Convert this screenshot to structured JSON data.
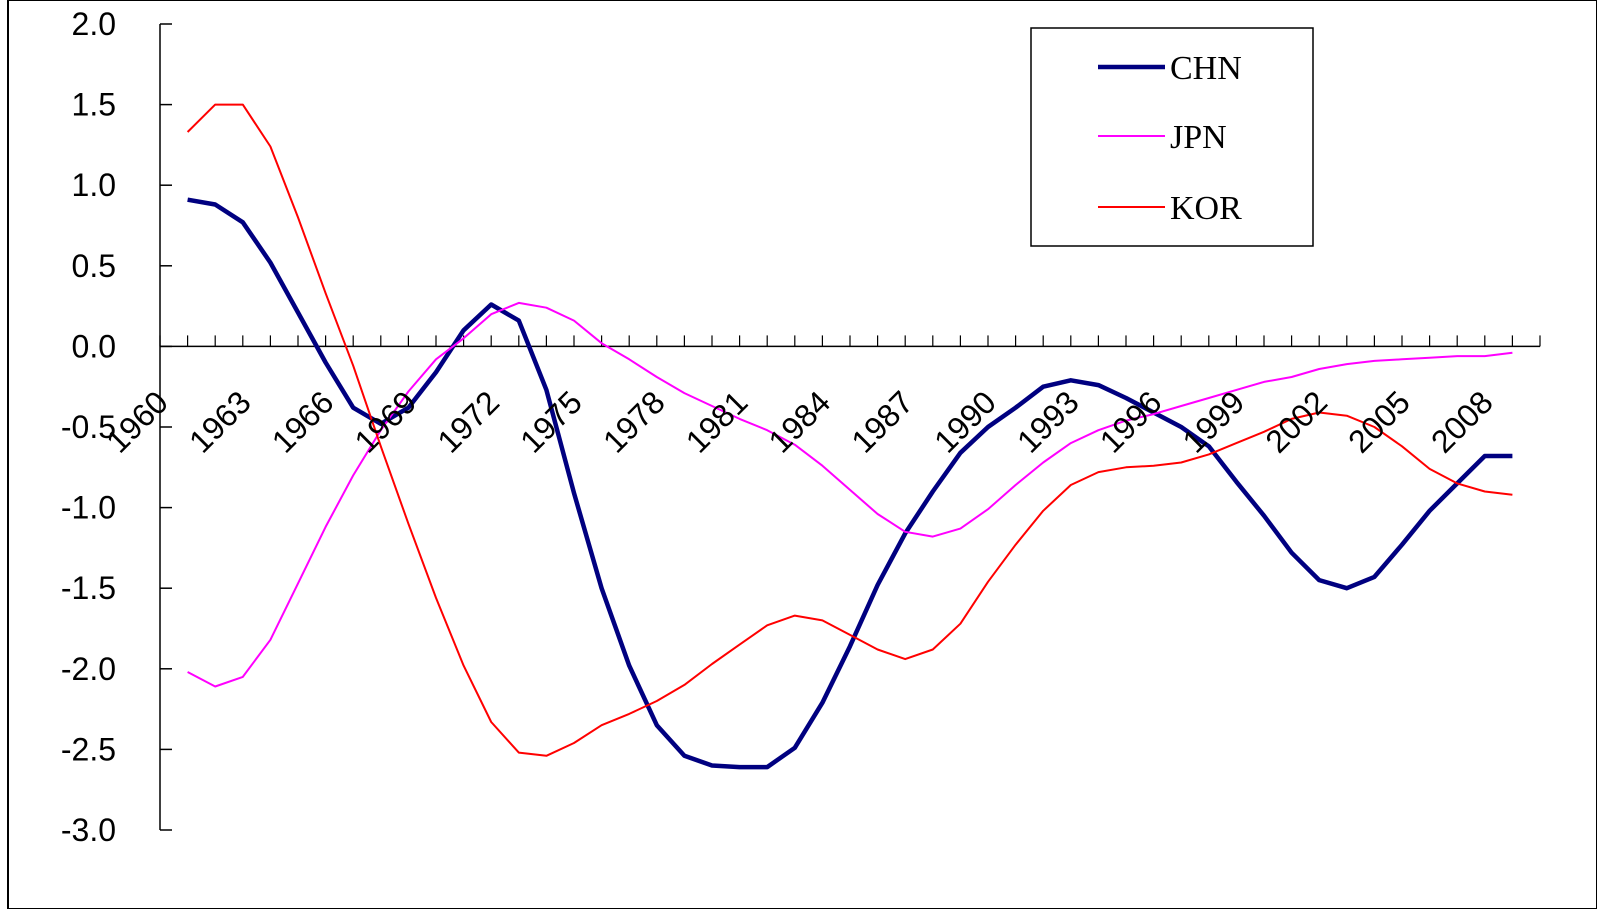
{
  "chart_data": {
    "type": "line",
    "title": "",
    "xlabel": "",
    "ylabel": "",
    "ylim": [
      -3.0,
      2.0
    ],
    "yticks": [
      "2.0",
      "1.5",
      "1.0",
      "0.5",
      "0.0",
      "-0.5",
      "-1.0",
      "-1.5",
      "-2.0",
      "-2.5",
      "-3.0"
    ],
    "xlim": [
      1960,
      2010
    ],
    "xticks": [
      "1960",
      "1963",
      "1966",
      "1969",
      "1972",
      "1975",
      "1978",
      "1981",
      "1984",
      "1987",
      "1990",
      "1993",
      "1996",
      "1999",
      "2002",
      "2005",
      "2008"
    ],
    "grid": false,
    "legend_position": "top-right",
    "series": [
      {
        "name": "CHN",
        "color": "#000080",
        "x": [
          1961,
          1962,
          1963,
          1964,
          1965,
          1966,
          1967,
          1968,
          1969,
          1970,
          1971,
          1972,
          1973,
          1974,
          1975,
          1976,
          1977,
          1978,
          1979,
          1980,
          1981,
          1982,
          1983,
          1984,
          1985,
          1986,
          1987,
          1988,
          1989,
          1990,
          1991,
          1992,
          1993,
          1994,
          1995,
          1996,
          1997,
          1998,
          1999,
          2000,
          2001,
          2002,
          2003,
          2004,
          2005,
          2006,
          2007,
          2008,
          2009
        ],
        "values": [
          0.91,
          0.88,
          0.77,
          0.52,
          0.21,
          -0.1,
          -0.38,
          -0.48,
          -0.38,
          -0.16,
          0.1,
          0.26,
          0.16,
          -0.27,
          -0.91,
          -1.5,
          -1.98,
          -2.35,
          -2.54,
          -2.6,
          -2.61,
          -2.61,
          -2.49,
          -2.21,
          -1.86,
          -1.48,
          -1.16,
          -0.9,
          -0.66,
          -0.5,
          -0.38,
          -0.25,
          -0.21,
          -0.24,
          -0.32,
          -0.41,
          -0.5,
          -0.62,
          -0.84,
          -1.05,
          -1.28,
          -1.45,
          -1.5,
          -1.43,
          -1.23,
          -1.02,
          -0.85,
          -0.68,
          -0.68
        ]
      },
      {
        "name": "JPN",
        "color": "#ff00ff",
        "x": [
          1961,
          1962,
          1963,
          1964,
          1965,
          1966,
          1967,
          1968,
          1969,
          1970,
          1971,
          1972,
          1973,
          1974,
          1975,
          1976,
          1977,
          1978,
          1979,
          1980,
          1981,
          1982,
          1983,
          1984,
          1985,
          1986,
          1987,
          1988,
          1989,
          1990,
          1991,
          1992,
          1993,
          1994,
          1995,
          1996,
          1997,
          1998,
          1999,
          2000,
          2001,
          2002,
          2003,
          2004,
          2005,
          2006,
          2007,
          2008,
          2009
        ],
        "values": [
          -2.02,
          -2.11,
          -2.05,
          -1.82,
          -1.47,
          -1.12,
          -0.8,
          -0.52,
          -0.28,
          -0.08,
          0.05,
          0.2,
          0.27,
          0.24,
          0.16,
          0.02,
          -0.08,
          -0.19,
          -0.29,
          -0.37,
          -0.45,
          -0.52,
          -0.61,
          -0.74,
          -0.89,
          -1.04,
          -1.15,
          -1.18,
          -1.13,
          -1.01,
          -0.86,
          -0.72,
          -0.6,
          -0.52,
          -0.46,
          -0.42,
          -0.37,
          -0.32,
          -0.27,
          -0.22,
          -0.19,
          -0.14,
          -0.11,
          -0.09,
          -0.08,
          -0.07,
          -0.06,
          -0.06,
          -0.04
        ]
      },
      {
        "name": "KOR",
        "color": "#ff0000",
        "x": [
          1961,
          1962,
          1963,
          1964,
          1965,
          1966,
          1967,
          1968,
          1969,
          1970,
          1971,
          1972,
          1973,
          1974,
          1975,
          1976,
          1977,
          1978,
          1979,
          1980,
          1981,
          1982,
          1983,
          1984,
          1985,
          1986,
          1987,
          1988,
          1989,
          1990,
          1991,
          1992,
          1993,
          1994,
          1995,
          1996,
          1997,
          1998,
          1999,
          2000,
          2001,
          2002,
          2003,
          2004,
          2005,
          2006,
          2007,
          2008,
          2009
        ],
        "values": [
          1.33,
          1.5,
          1.5,
          1.24,
          0.8,
          0.33,
          -0.12,
          -0.62,
          -1.1,
          -1.56,
          -1.98,
          -2.33,
          -2.52,
          -2.54,
          -2.46,
          -2.35,
          -2.28,
          -2.2,
          -2.1,
          -1.97,
          -1.85,
          -1.73,
          -1.67,
          -1.7,
          -1.79,
          -1.88,
          -1.94,
          -1.88,
          -1.72,
          -1.46,
          -1.23,
          -1.02,
          -0.86,
          -0.78,
          -0.75,
          -0.74,
          -0.72,
          -0.67,
          -0.6,
          -0.53,
          -0.45,
          -0.41,
          -0.43,
          -0.5,
          -0.62,
          -0.76,
          -0.85,
          -0.9,
          -0.92
        ]
      }
    ]
  }
}
